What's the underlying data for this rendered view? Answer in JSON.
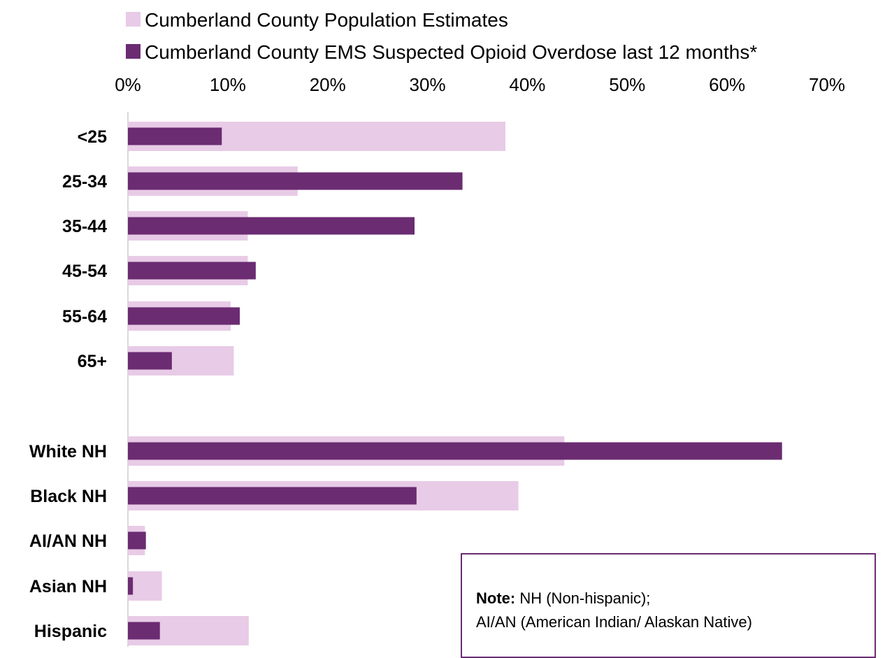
{
  "chart_data": {
    "type": "bar",
    "orientation": "horizontal",
    "categories": [
      "<25",
      "25-34",
      "35-44",
      "45-54",
      "55-64",
      "65+",
      "White NH",
      "Black NH",
      "AI/AN NH",
      "Asian NH",
      "Hispanic"
    ],
    "series": [
      {
        "name": "Cumberland County Population Estimates",
        "color": "#e8cbe6",
        "values": [
          37.8,
          17.0,
          12.0,
          12.0,
          10.3,
          10.6,
          43.7,
          39.1,
          1.7,
          3.4,
          12.1
        ]
      },
      {
        "name": "Cumberland County EMS Suspected Opioid Overdose last 12 months*",
        "color": "#6b2c72",
        "values": [
          9.4,
          33.5,
          28.7,
          12.8,
          11.2,
          4.4,
          65.5,
          28.9,
          1.8,
          0.5,
          3.2
        ]
      }
    ],
    "xlim": [
      0,
      70
    ],
    "xticks": [
      "0%",
      "10%",
      "20%",
      "30%",
      "40%",
      "50%",
      "60%",
      "70%"
    ],
    "axis_position": "top",
    "legend_position": "top",
    "grid": false
  },
  "note": {
    "label": "Note:",
    "line1": "NH (Non-hispanic);",
    "line2": "AI/AN (American Indian/ Alaskan Native)"
  }
}
